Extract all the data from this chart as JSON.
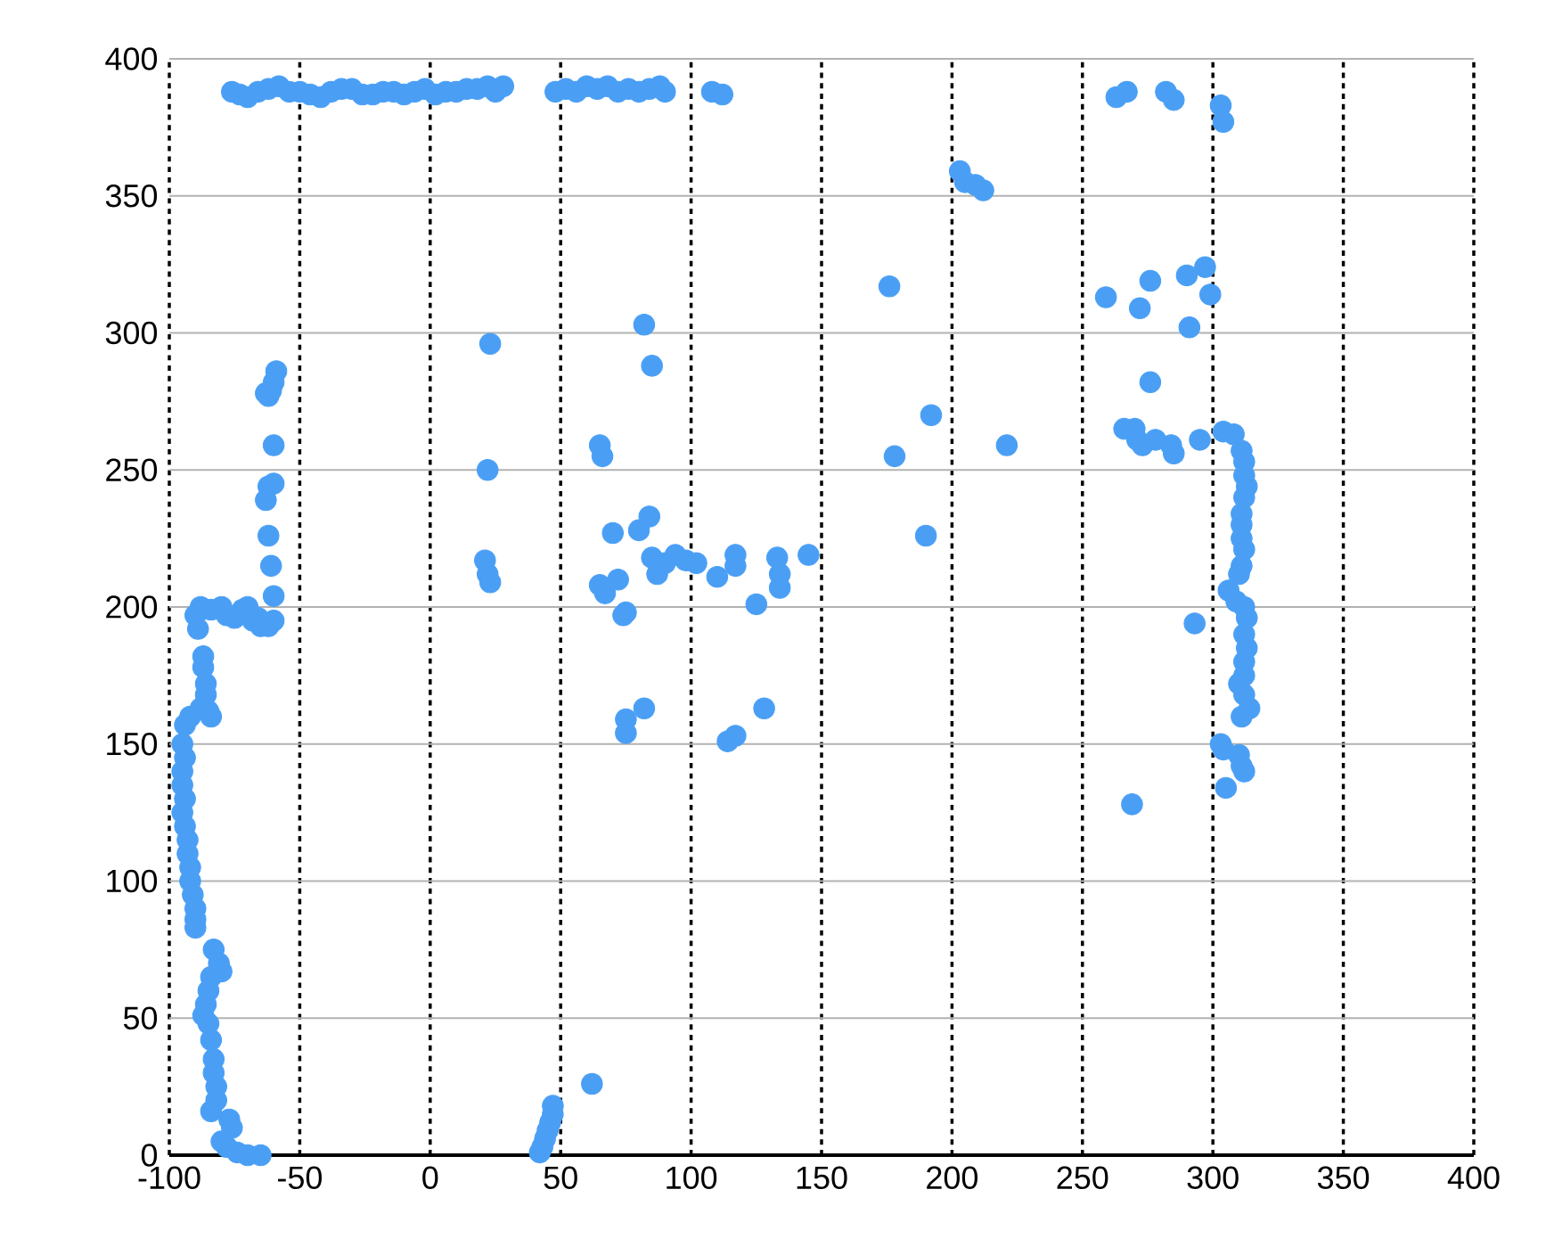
{
  "chart_data": {
    "type": "scatter",
    "color": "#4a9ff5",
    "grid": true,
    "xlim": [
      -100,
      400
    ],
    "ylim": [
      0,
      400
    ],
    "xticks": [
      -100,
      -50,
      0,
      50,
      100,
      150,
      200,
      250,
      300,
      350,
      400
    ],
    "yticks": [
      0,
      50,
      100,
      150,
      200,
      250,
      300,
      350,
      400
    ],
    "x": [
      -76,
      -73,
      -70,
      -66,
      -62,
      -58,
      -54,
      -50,
      -46,
      -42,
      -38,
      -34,
      -30,
      -26,
      -22,
      -18,
      -14,
      -10,
      -6,
      -2,
      2,
      6,
      10,
      14,
      18,
      22,
      25,
      28,
      48,
      52,
      56,
      60,
      64,
      68,
      72,
      76,
      80,
      84,
      88,
      90,
      108,
      112,
      -59,
      -60,
      -61,
      -62,
      -63,
      -60,
      -62,
      -60,
      -63,
      -62,
      -61,
      -60,
      -60,
      -62,
      -88,
      -90,
      -89,
      -84,
      -80,
      -78,
      -75,
      -72,
      -70,
      -68,
      -66,
      -65,
      -87,
      -87,
      -86,
      -86,
      -85,
      -88,
      -84,
      -92,
      -94,
      -95,
      -94,
      -95,
      -95,
      -94,
      -95,
      -94,
      -93,
      -93,
      -92,
      -92,
      -91,
      -90,
      -90,
      -90,
      -83,
      -81,
      -80,
      -84,
      -85,
      -86,
      -87,
      -85,
      -84,
      -83,
      -83,
      -82,
      -82,
      -84,
      -77,
      -76,
      -80,
      -78,
      -74,
      -70,
      -65,
      42,
      43,
      44,
      45,
      46,
      47,
      47,
      62,
      23,
      22,
      21,
      22,
      23,
      82,
      85,
      65,
      66,
      70,
      80,
      84,
      65,
      67,
      72,
      75,
      74,
      85,
      87,
      90,
      94,
      98,
      102,
      110,
      117,
      117,
      125,
      133,
      134,
      134,
      145,
      75,
      75,
      82,
      114,
      117,
      128,
      176,
      178,
      192,
      190,
      221,
      203,
      205,
      209,
      212,
      259,
      272,
      276,
      290,
      297,
      299,
      291,
      276,
      263,
      267,
      282,
      285,
      303,
      304,
      266,
      270,
      271,
      273,
      278,
      284,
      285,
      295,
      304,
      308,
      311,
      312,
      312,
      313,
      312,
      311,
      311,
      311,
      312,
      311,
      310,
      306,
      309,
      312,
      313,
      312,
      313,
      312,
      312,
      310,
      312,
      314,
      311,
      293,
      303,
      304,
      310,
      311,
      312,
      305,
      269
    ],
    "values": [
      388,
      387,
      386,
      388,
      389,
      390,
      388,
      388,
      387,
      386,
      388,
      389,
      389,
      387,
      387,
      388,
      388,
      387,
      388,
      389,
      387,
      388,
      388,
      389,
      389,
      390,
      388,
      390,
      388,
      389,
      388,
      390,
      389,
      390,
      388,
      389,
      388,
      389,
      390,
      388,
      388,
      387,
      286,
      282,
      279,
      277,
      278,
      259,
      244,
      245,
      239,
      226,
      215,
      204,
      195,
      193,
      200,
      197,
      192,
      199,
      200,
      197,
      196,
      199,
      200,
      195,
      196,
      193,
      182,
      178,
      172,
      168,
      162,
      163,
      160,
      160,
      157,
      150,
      145,
      140,
      135,
      130,
      125,
      120,
      115,
      110,
      105,
      100,
      95,
      90,
      86,
      83,
      75,
      70,
      67,
      65,
      60,
      55,
      51,
      48,
      42,
      35,
      30,
      25,
      20,
      16,
      13,
      10,
      5,
      3,
      1,
      0,
      0,
      1,
      3,
      6,
      9,
      12,
      15,
      18,
      26,
      296,
      250,
      217,
      212,
      209,
      303,
      288,
      259,
      255,
      227,
      228,
      233,
      208,
      205,
      210,
      198,
      197,
      218,
      212,
      216,
      219,
      217,
      216,
      211,
      219,
      215,
      201,
      218,
      212,
      207,
      219,
      159,
      154,
      163,
      151,
      153,
      163,
      317,
      255,
      270,
      226,
      259,
      359,
      355,
      354,
      352,
      313,
      309,
      319,
      321,
      324,
      314,
      302,
      282,
      386,
      388,
      388,
      385,
      383,
      377,
      265,
      265,
      261,
      259,
      261,
      259,
      256,
      261,
      264,
      263,
      257,
      253,
      248,
      244,
      240,
      234,
      230,
      225,
      221,
      215,
      212,
      206,
      202,
      200,
      196,
      190,
      185,
      180,
      175,
      172,
      168,
      163,
      160,
      194,
      150,
      148,
      146,
      142,
      140,
      134,
      128
    ]
  }
}
